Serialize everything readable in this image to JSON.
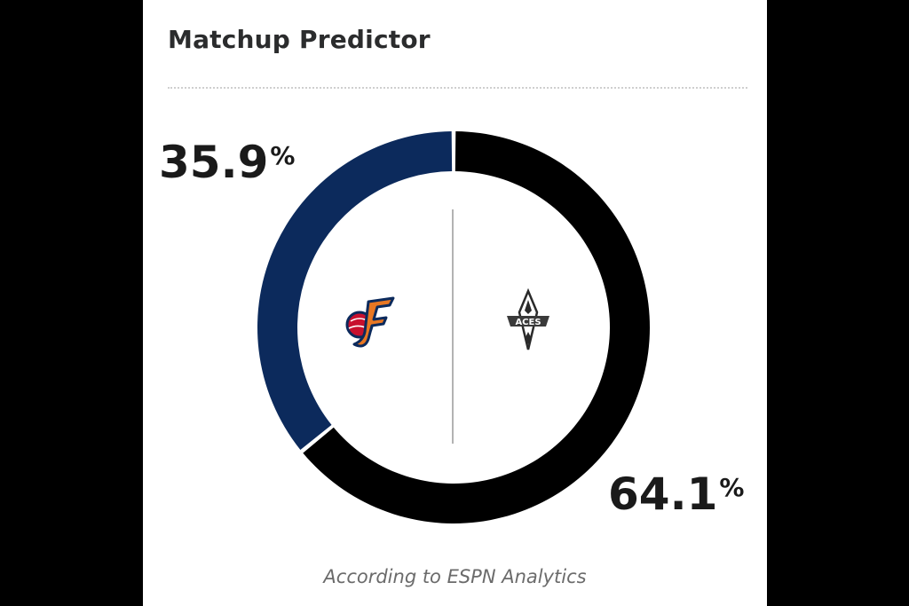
{
  "widget": {
    "title": "Matchup Predictor",
    "footnote": "According to ESPN Analytics"
  },
  "chart_data": {
    "type": "pie",
    "style": "donut",
    "title": "Matchup Predictor",
    "slices": [
      {
        "team": "Indiana Fever",
        "value": 35.9,
        "color": "#0c2a5c",
        "logo": "fever-logo-icon"
      },
      {
        "team": "Las Vegas Aces",
        "value": 64.1,
        "color": "#000000",
        "logo": "aces-logo-icon"
      }
    ],
    "labels": {
      "home_value": "35.9",
      "away_value": "64.1",
      "percent_sign": "%"
    }
  }
}
